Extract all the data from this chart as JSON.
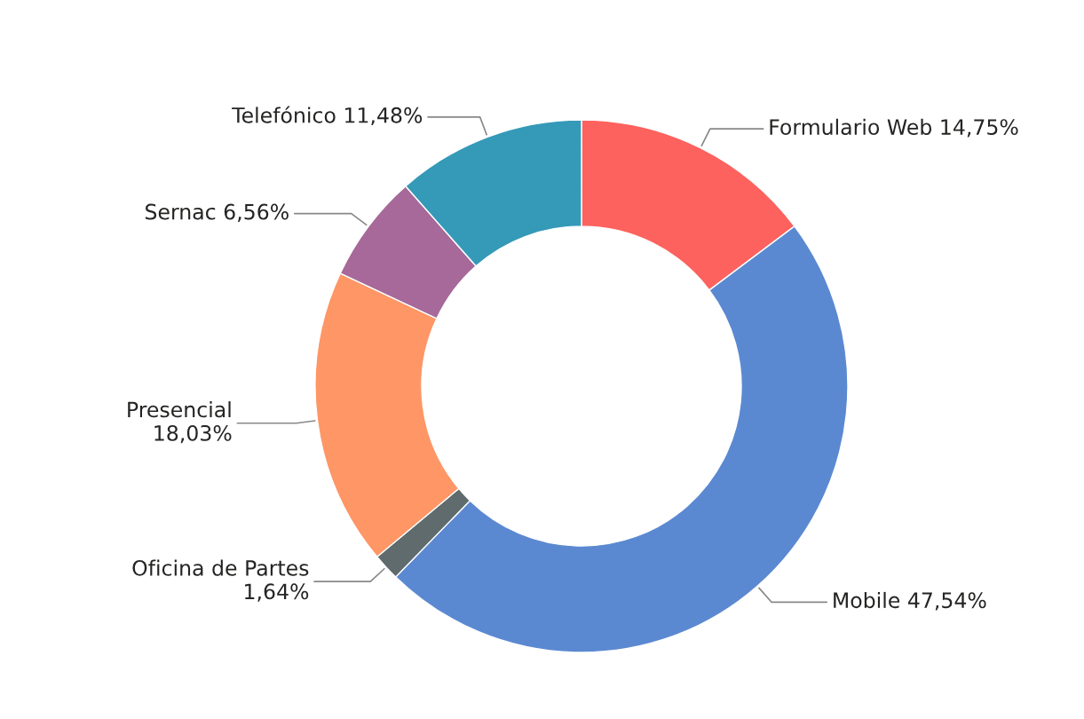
{
  "chart_data": {
    "type": "donut",
    "categories": [
      "Formulario Web",
      "Mobile",
      "Oficina de Partes",
      "Presencial",
      "Sernac",
      "Telefónico"
    ],
    "values": [
      14.75,
      47.54,
      1.64,
      18.03,
      6.56,
      11.48
    ],
    "value_labels": [
      "14,75%",
      "47,54%",
      "1,64%",
      "18,03%",
      "6,56%",
      "11,48%"
    ],
    "colors": [
      "#fd625e",
      "#5b89d1",
      "#5f6b6d",
      "#fe9666",
      "#a66999",
      "#3599b8"
    ],
    "legend": false
  }
}
